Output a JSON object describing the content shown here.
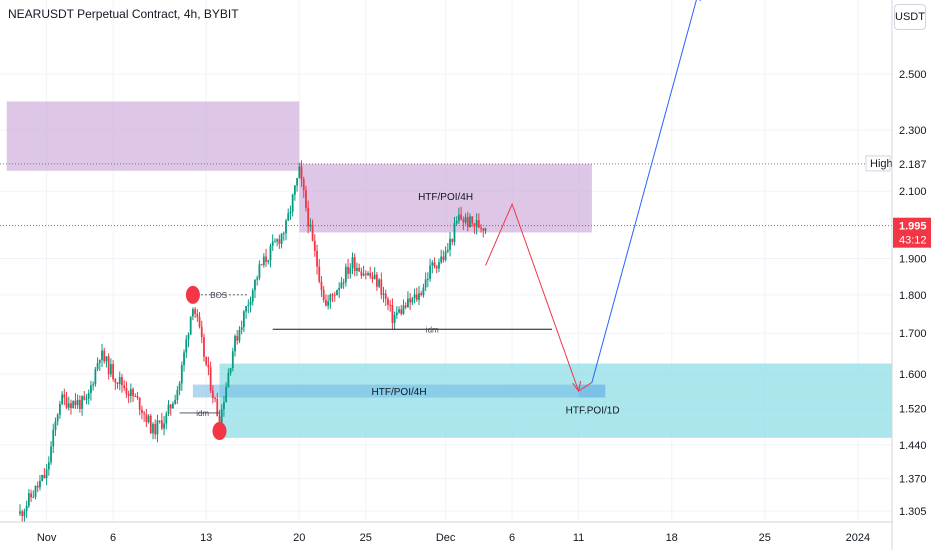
{
  "chart_title": "NEARUSDT Perpetual Contract, 4h, BYBIT",
  "currency_label": "USDT",
  "colors": {
    "up": "#089981",
    "down": "#f23645",
    "supply_zone": "#d1b3dd",
    "demand_zone": "#8fdde6",
    "demand_zone_inner": "#6fb8e6",
    "projection_down": "#f23645",
    "projection_up": "#2962ff",
    "marker": "#f23645"
  },
  "chart_data": {
    "type": "candlestick",
    "title": "NEARUSDT Perpetual Contract, 4h, BYBIT",
    "y_axis": {
      "scale": "log",
      "ticks": [
        "2.500",
        "2.300",
        "2.100",
        "1.900",
        "1.800",
        "1.700",
        "1.600",
        "1.520",
        "1.440",
        "1.370",
        "1.305"
      ],
      "range": [
        1.29,
        2.9
      ]
    },
    "x_axis": {
      "ticks": [
        "Nov",
        "6",
        "13",
        "20",
        "25",
        "Dec",
        "6",
        "11",
        "18",
        "25",
        "2024"
      ]
    },
    "price_path": [
      {
        "date": "2023-10-30",
        "price": 1.3
      },
      {
        "date": "2023-11-01",
        "price": 1.38
      },
      {
        "date": "2023-11-02",
        "price": 1.54
      },
      {
        "date": "2023-11-04",
        "price": 1.53
      },
      {
        "date": "2023-11-05",
        "price": 1.65
      },
      {
        "date": "2023-11-06",
        "price": 1.6
      },
      {
        "date": "2023-11-08",
        "price": 1.53
      },
      {
        "date": "2023-11-09",
        "price": 1.47
      },
      {
        "date": "2023-11-10",
        "price": 1.5
      },
      {
        "date": "2023-11-11",
        "price": 1.58
      },
      {
        "date": "2023-11-12",
        "price": 1.78
      },
      {
        "date": "2023-11-13",
        "price": 1.62
      },
      {
        "date": "2023-11-14",
        "price": 1.49
      },
      {
        "date": "2023-11-15",
        "price": 1.66
      },
      {
        "date": "2023-11-17",
        "price": 1.87
      },
      {
        "date": "2023-11-19",
        "price": 1.99
      },
      {
        "date": "2023-11-20",
        "price": 2.16
      },
      {
        "date": "2023-11-21",
        "price": 1.94
      },
      {
        "date": "2023-11-22",
        "price": 1.77
      },
      {
        "date": "2023-11-24",
        "price": 1.89
      },
      {
        "date": "2023-11-26",
        "price": 1.83
      },
      {
        "date": "2023-11-27",
        "price": 1.74
      },
      {
        "date": "2023-11-29",
        "price": 1.8
      },
      {
        "date": "2023-11-30",
        "price": 1.88
      },
      {
        "date": "2023-12-01",
        "price": 1.91
      },
      {
        "date": "2023-12-02",
        "price": 2.02
      },
      {
        "date": "2023-12-03",
        "price": 2.0
      },
      {
        "date": "2023-12-04",
        "price": 1.995
      }
    ],
    "last_price": "1.995",
    "countdown": "43:12",
    "high_label": "High",
    "high_value": "2.187",
    "zones": [
      {
        "label": "",
        "top": 2.4,
        "bottom": 2.165,
        "start": "2023-10-29",
        "end": "2023-11-20",
        "color": "#d1b3dd"
      },
      {
        "label": "HTF/POI/4H",
        "top": 2.187,
        "bottom": 1.975,
        "start": "2023-11-20",
        "end": "2023-12-12",
        "color": "#d1b3dd"
      },
      {
        "label": "",
        "top": 1.625,
        "bottom": 1.455,
        "start": "2023-11-14",
        "end": "2024-01-06",
        "color": "#8fdde6"
      },
      {
        "label": "HTF/POI/4H",
        "top": 1.575,
        "bottom": 1.545,
        "start": "2023-11-12",
        "end": "2023-12-13",
        "color": "#6fb8e6"
      },
      {
        "label": "HTF.POI/1D",
        "top": 1.575,
        "bottom": 1.545,
        "start": "2023-12-11",
        "end": "2023-12-13",
        "color": "#6fb8e6"
      }
    ],
    "structure_labels": [
      {
        "label": "BOS",
        "price": 1.8,
        "date": "2023-11-13"
      },
      {
        "label": "idm",
        "price": 1.71,
        "date": "2023-11-25"
      },
      {
        "label": "idm",
        "price": 1.51,
        "date": "2023-11-13"
      }
    ],
    "markers": [
      {
        "date": "2023-11-12",
        "price": 1.8
      },
      {
        "date": "2023-11-14",
        "price": 1.47
      }
    ],
    "projection": [
      {
        "date": "2023-12-04",
        "price": 1.88
      },
      {
        "date": "2023-12-06",
        "price": 2.06
      },
      {
        "date": "2023-12-11",
        "price": 1.56
      },
      {
        "date": "2023-12-12",
        "price": 1.58
      },
      {
        "date": "2023-12-20",
        "price": 2.82
      }
    ]
  }
}
